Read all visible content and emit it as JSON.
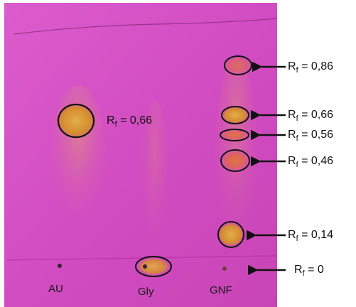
{
  "colors": {
    "plate": "#d64fc6",
    "plate_dark": "#b93aa8",
    "spot_orange": "#e07c2a",
    "spot_yellow": "#d9a23a",
    "outline": "#111111",
    "background": "#ffffff"
  },
  "lanes": [
    {
      "name": "AU"
    },
    {
      "name": "Gly"
    },
    {
      "name": "GNF"
    }
  ],
  "rf_labels": [
    {
      "prefix": "R",
      "sub": "f",
      "suffix": " = 0,86"
    },
    {
      "prefix": "R",
      "sub": "f",
      "suffix": " = 0,66"
    },
    {
      "prefix": "R",
      "sub": "f",
      "suffix": " = 0,56"
    },
    {
      "prefix": "R",
      "sub": "f",
      "suffix": " = 0,46"
    },
    {
      "prefix": "R",
      "sub": "f",
      "suffix": " = 0,14"
    },
    {
      "prefix": "R",
      "sub": "f",
      "suffix": " = 0"
    },
    {
      "prefix": "R",
      "sub": "f",
      "suffix": " = 0,66"
    }
  ],
  "icons": {
    "arrow": "left-arrow-icon",
    "spot_outline": "ellipse-outline-icon"
  }
}
